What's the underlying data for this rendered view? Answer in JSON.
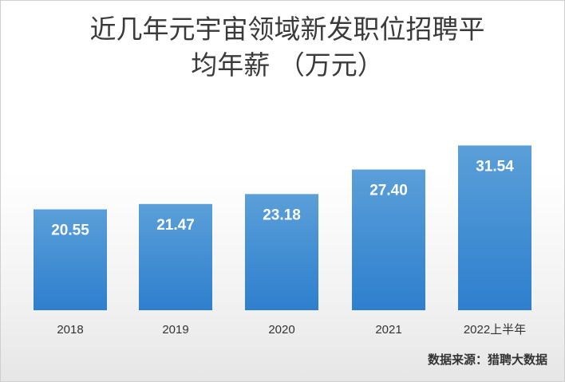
{
  "chart_data": {
    "type": "bar",
    "title_line1": "近几年元宇宙领域新发职位招聘平",
    "title_line2": "均年薪 （万元）",
    "categories": [
      "2018",
      "2019",
      "2020",
      "2021",
      "2022上半年"
    ],
    "values": [
      20.55,
      21.47,
      23.18,
      27.4,
      31.54
    ],
    "value_labels": [
      "20.55",
      "21.47",
      "23.18",
      "27.40",
      "31.54"
    ],
    "bar_color_top": "#5a9fd8",
    "bar_color_bottom": "#2e7fce",
    "xlabel": "",
    "ylabel": "",
    "grid": false,
    "legend": "none"
  },
  "source_note": "数据来源：猎聘大数据"
}
